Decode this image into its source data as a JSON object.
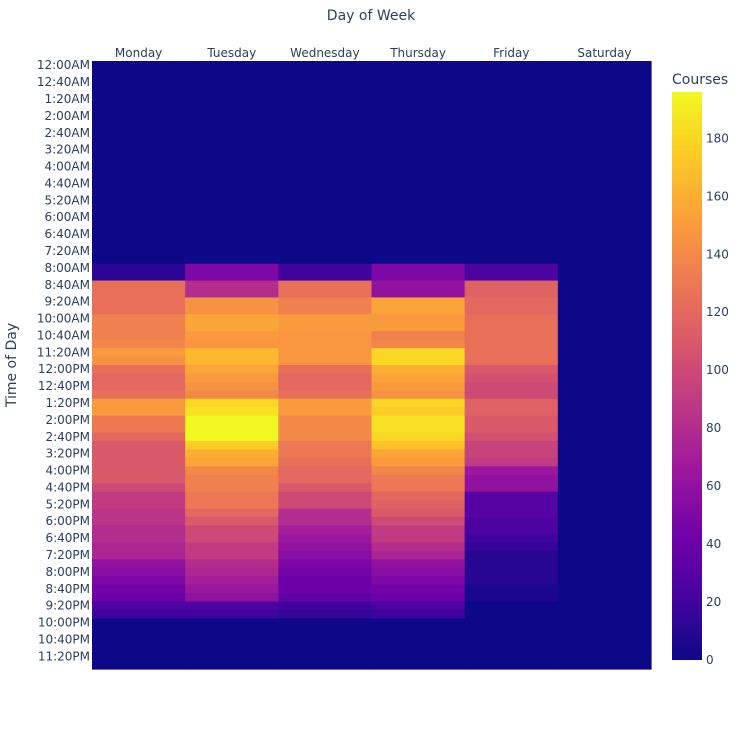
{
  "chart_data": {
    "type": "heatmap",
    "xlabel": "Day of Week",
    "ylabel": "Time of Day",
    "x_categories": [
      "Monday",
      "Tuesday",
      "Wednesday",
      "Thursday",
      "Friday",
      "Saturday"
    ],
    "y_tick_labels": [
      "12:00AM",
      "12:40AM",
      "1:20AM",
      "2:00AM",
      "2:40AM",
      "3:20AM",
      "4:00AM",
      "4:40AM",
      "5:20AM",
      "6:00AM",
      "6:40AM",
      "7:20AM",
      "8:00AM",
      "8:40AM",
      "9:20AM",
      "10:00AM",
      "10:40AM",
      "11:20AM",
      "12:00PM",
      "12:40PM",
      "1:20PM",
      "2:00PM",
      "2:40PM",
      "3:20PM",
      "4:00PM",
      "4:40PM",
      "5:20PM",
      "6:00PM",
      "6:40PM",
      "7:20PM",
      "8:00PM",
      "8:40PM",
      "9:20PM",
      "10:00PM",
      "10:40PM",
      "11:20PM"
    ],
    "y_slots": [
      "12:00AM",
      "12:20AM",
      "12:40AM",
      "1:00AM",
      "1:20AM",
      "1:40AM",
      "2:00AM",
      "2:20AM",
      "2:40AM",
      "3:00AM",
      "3:20AM",
      "3:40AM",
      "4:00AM",
      "4:20AM",
      "4:40AM",
      "5:00AM",
      "5:20AM",
      "5:40AM",
      "6:00AM",
      "6:20AM",
      "6:40AM",
      "7:00AM",
      "7:20AM",
      "7:40AM",
      "8:00AM",
      "8:20AM",
      "8:40AM",
      "9:00AM",
      "9:20AM",
      "9:40AM",
      "10:00AM",
      "10:20AM",
      "10:40AM",
      "11:00AM",
      "11:20AM",
      "11:40AM",
      "12:00PM",
      "12:20PM",
      "12:40PM",
      "1:00PM",
      "1:20PM",
      "1:40PM",
      "2:00PM",
      "2:20PM",
      "2:40PM",
      "3:00PM",
      "3:20PM",
      "3:40PM",
      "4:00PM",
      "4:20PM",
      "4:40PM",
      "5:00PM",
      "5:20PM",
      "5:40PM",
      "6:00PM",
      "6:20PM",
      "6:40PM",
      "7:00PM",
      "7:20PM",
      "7:40PM",
      "8:00PM",
      "8:20PM",
      "8:40PM",
      "9:00PM",
      "9:20PM",
      "9:40PM",
      "10:00PM",
      "10:20PM",
      "10:40PM",
      "11:00PM",
      "11:20PM",
      "11:40PM"
    ],
    "values_by_day": {
      "Monday": [
        0,
        0,
        0,
        0,
        0,
        0,
        0,
        0,
        0,
        0,
        0,
        0,
        0,
        0,
        0,
        0,
        0,
        0,
        0,
        0,
        0,
        0,
        0,
        0,
        12,
        12,
        125,
        125,
        125,
        125,
        135,
        135,
        135,
        138,
        150,
        145,
        125,
        120,
        120,
        125,
        150,
        150,
        130,
        130,
        120,
        110,
        110,
        110,
        110,
        110,
        100,
        90,
        90,
        85,
        85,
        80,
        80,
        75,
        75,
        60,
        55,
        50,
        45,
        40,
        25,
        20,
        0,
        0,
        0,
        0,
        0,
        0
      ],
      "Tuesday": [
        0,
        0,
        0,
        0,
        0,
        0,
        0,
        0,
        0,
        0,
        0,
        0,
        0,
        0,
        0,
        0,
        0,
        0,
        0,
        0,
        0,
        0,
        0,
        0,
        50,
        50,
        80,
        80,
        145,
        145,
        155,
        155,
        150,
        148,
        165,
        165,
        155,
        150,
        145,
        140,
        180,
        185,
        195,
        195,
        195,
        175,
        160,
        155,
        140,
        135,
        135,
        130,
        130,
        120,
        110,
        100,
        100,
        90,
        90,
        80,
        75,
        70,
        65,
        60,
        25,
        20,
        0,
        0,
        0,
        0,
        0,
        0
      ],
      "Wednesday": [
        0,
        0,
        0,
        0,
        0,
        0,
        0,
        0,
        0,
        0,
        0,
        0,
        0,
        0,
        0,
        0,
        0,
        0,
        0,
        0,
        0,
        0,
        0,
        0,
        20,
        20,
        125,
        125,
        135,
        135,
        150,
        150,
        148,
        148,
        148,
        148,
        125,
        120,
        120,
        125,
        150,
        150,
        140,
        140,
        140,
        130,
        130,
        125,
        120,
        120,
        110,
        100,
        100,
        80,
        80,
        70,
        65,
        60,
        55,
        50,
        45,
        40,
        40,
        35,
        20,
        15,
        0,
        0,
        0,
        0,
        0,
        0
      ],
      "Thursday": [
        0,
        0,
        0,
        0,
        0,
        0,
        0,
        0,
        0,
        0,
        0,
        0,
        0,
        0,
        0,
        0,
        0,
        0,
        0,
        0,
        0,
        0,
        0,
        0,
        50,
        50,
        60,
        60,
        155,
        155,
        150,
        150,
        135,
        138,
        180,
        180,
        160,
        155,
        150,
        145,
        180,
        175,
        185,
        185,
        180,
        170,
        155,
        150,
        140,
        130,
        130,
        120,
        115,
        110,
        100,
        90,
        90,
        80,
        75,
        60,
        55,
        50,
        45,
        40,
        25,
        20,
        0,
        0,
        0,
        0,
        0,
        0
      ],
      "Friday": [
        0,
        0,
        0,
        0,
        0,
        0,
        0,
        0,
        0,
        0,
        0,
        0,
        0,
        0,
        0,
        0,
        0,
        0,
        0,
        0,
        0,
        0,
        0,
        0,
        25,
        25,
        115,
        115,
        120,
        120,
        125,
        125,
        125,
        125,
        125,
        125,
        110,
        105,
        100,
        100,
        115,
        115,
        110,
        110,
        105,
        95,
        95,
        90,
        65,
        60,
        60,
        30,
        30,
        30,
        25,
        25,
        20,
        15,
        10,
        10,
        10,
        10,
        5,
        5,
        0,
        0,
        0,
        0,
        0,
        0,
        0,
        0
      ],
      "Saturday": [
        0,
        0,
        0,
        0,
        0,
        0,
        0,
        0,
        0,
        0,
        0,
        0,
        0,
        0,
        0,
        0,
        0,
        0,
        0,
        0,
        0,
        0,
        0,
        0,
        0,
        0,
        0,
        0,
        0,
        0,
        0,
        0,
        0,
        0,
        0,
        0,
        0,
        0,
        0,
        0,
        0,
        0,
        0,
        0,
        0,
        0,
        0,
        0,
        0,
        0,
        0,
        0,
        0,
        0,
        0,
        0,
        0,
        0,
        0,
        0,
        0,
        0,
        0,
        0,
        0,
        0,
        0,
        0,
        0,
        0,
        0,
        0
      ]
    },
    "zmin": 0,
    "zmax": 196,
    "colorscale": "plasma",
    "colorbar": {
      "title": "Courses",
      "tickvals": [
        0,
        20,
        40,
        60,
        80,
        100,
        120,
        140,
        160,
        180
      ]
    },
    "x_axis_side": "top",
    "grid": false
  }
}
